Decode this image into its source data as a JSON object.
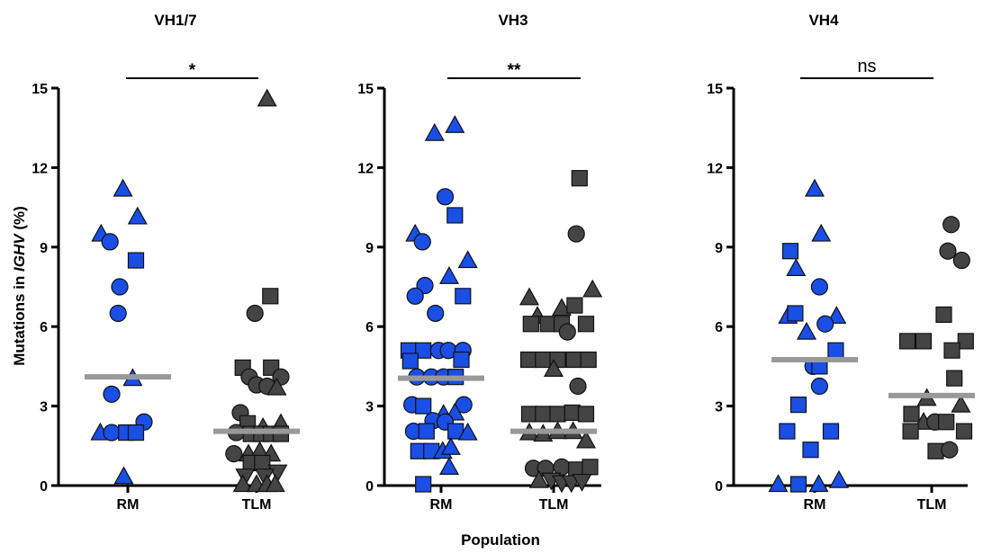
{
  "figure": {
    "ylabel_prefix": "Mutations in ",
    "ylabel_italic": "IGHV",
    "ylabel_suffix": " (%)",
    "xlabel": "Population"
  },
  "colors": {
    "rm_fill": "#1a4fe6",
    "tlm_fill": "#444444",
    "marker_stroke": "#111111",
    "median": "#999999"
  },
  "chart_data": [
    {
      "type": "scatter",
      "title": "VH1/7",
      "categories": [
        "RM",
        "TLM"
      ],
      "yticks": [
        0,
        3,
        6,
        9,
        12,
        15
      ],
      "ylim": [
        0,
        15
      ],
      "significance": "*",
      "medians": [
        4.1,
        2.05
      ],
      "series": [
        {
          "values": [
            {
              "x": -0.33,
              "y": 9.5,
              "m": "triangle"
            },
            {
              "x": -0.06,
              "y": 11.2,
              "m": "triangle"
            },
            {
              "x": 0.12,
              "y": 10.15,
              "m": "triangle"
            },
            {
              "x": -0.22,
              "y": 9.2,
              "m": "circle"
            },
            {
              "x": 0.1,
              "y": 8.5,
              "m": "square"
            },
            {
              "x": -0.1,
              "y": 7.5,
              "m": "circle"
            },
            {
              "x": -0.12,
              "y": 6.5,
              "m": "circle"
            },
            {
              "x": 0.06,
              "y": 4.05,
              "m": "triangle"
            },
            {
              "x": -0.2,
              "y": 3.45,
              "m": "circle"
            },
            {
              "x": 0.2,
              "y": 2.4,
              "m": "circle"
            },
            {
              "x": -0.34,
              "y": 2.0,
              "m": "triangle"
            },
            {
              "x": -0.2,
              "y": 2.0,
              "m": "circle"
            },
            {
              "x": -0.02,
              "y": 2.0,
              "m": "square"
            },
            {
              "x": 0.1,
              "y": 2.0,
              "m": "square"
            },
            {
              "x": -0.05,
              "y": 0.35,
              "m": "triangle"
            }
          ]
        },
        {
          "values": [
            {
              "x": 0.13,
              "y": 14.6,
              "m": "triangle"
            },
            {
              "x": 0.17,
              "y": 7.15,
              "m": "square"
            },
            {
              "x": -0.02,
              "y": 6.5,
              "m": "circle"
            },
            {
              "x": -0.17,
              "y": 4.45,
              "m": "square"
            },
            {
              "x": 0.18,
              "y": 4.45,
              "m": "square"
            },
            {
              "x": -0.09,
              "y": 4.1,
              "m": "circle"
            },
            {
              "x": 0.3,
              "y": 4.1,
              "m": "circle"
            },
            {
              "x": 0.0,
              "y": 3.8,
              "m": "circle"
            },
            {
              "x": 0.13,
              "y": 3.75,
              "m": "circle"
            },
            {
              "x": 0.25,
              "y": 3.7,
              "m": "triangle"
            },
            {
              "x": -0.2,
              "y": 2.75,
              "m": "circle"
            },
            {
              "x": -0.11,
              "y": 2.35,
              "m": "square"
            },
            {
              "x": 0.08,
              "y": 2.2,
              "m": "triangle"
            },
            {
              "x": 0.3,
              "y": 2.35,
              "m": "triangle"
            },
            {
              "x": -0.25,
              "y": 2.0,
              "m": "circle"
            },
            {
              "x": -0.07,
              "y": 1.95,
              "m": "square"
            },
            {
              "x": 0.06,
              "y": 1.95,
              "m": "square"
            },
            {
              "x": 0.18,
              "y": 1.95,
              "m": "square"
            },
            {
              "x": 0.3,
              "y": 1.95,
              "m": "square"
            },
            {
              "x": -0.28,
              "y": 1.2,
              "m": "circle"
            },
            {
              "x": -0.1,
              "y": 1.2,
              "m": "triangle"
            },
            {
              "x": 0.04,
              "y": 1.3,
              "m": "triangle"
            },
            {
              "x": 0.18,
              "y": 1.2,
              "m": "triangle"
            },
            {
              "x": -0.07,
              "y": 0.85,
              "m": "square"
            },
            {
              "x": 0.07,
              "y": 0.85,
              "m": "square"
            },
            {
              "x": 0.26,
              "y": 0.5,
              "m": "triangle_down"
            },
            {
              "x": -0.14,
              "y": 0.35,
              "m": "triangle_down"
            },
            {
              "x": 0.1,
              "y": 0.35,
              "m": "triangle_down"
            },
            {
              "x": -0.17,
              "y": 0.05,
              "m": "triangle"
            },
            {
              "x": 0.0,
              "y": 0.05,
              "m": "triangle"
            },
            {
              "x": 0.13,
              "y": 0.05,
              "m": "triangle"
            },
            {
              "x": 0.23,
              "y": 0.05,
              "m": "triangle"
            }
          ]
        }
      ]
    },
    {
      "type": "scatter",
      "title": "VH3",
      "categories": [
        "RM",
        "TLM"
      ],
      "yticks": [
        0,
        3,
        6,
        9,
        12,
        15
      ],
      "ylim": [
        0,
        15
      ],
      "significance": "**",
      "medians": [
        4.05,
        2.05
      ],
      "series": [
        {
          "values": [
            {
              "x": -0.08,
              "y": 13.3,
              "m": "triangle"
            },
            {
              "x": 0.17,
              "y": 13.6,
              "m": "triangle"
            },
            {
              "x": 0.05,
              "y": 10.9,
              "m": "circle"
            },
            {
              "x": 0.17,
              "y": 10.2,
              "m": "square"
            },
            {
              "x": -0.32,
              "y": 9.5,
              "m": "triangle"
            },
            {
              "x": -0.23,
              "y": 9.2,
              "m": "circle"
            },
            {
              "x": 0.33,
              "y": 8.5,
              "m": "triangle"
            },
            {
              "x": 0.1,
              "y": 7.9,
              "m": "triangle"
            },
            {
              "x": -0.2,
              "y": 7.55,
              "m": "circle"
            },
            {
              "x": -0.32,
              "y": 7.15,
              "m": "circle"
            },
            {
              "x": 0.27,
              "y": 7.15,
              "m": "square"
            },
            {
              "x": -0.07,
              "y": 6.5,
              "m": "circle"
            },
            {
              "x": -0.4,
              "y": 5.1,
              "m": "square"
            },
            {
              "x": -0.22,
              "y": 5.1,
              "m": "square"
            },
            {
              "x": -0.03,
              "y": 5.1,
              "m": "circle"
            },
            {
              "x": 0.09,
              "y": 5.1,
              "m": "circle"
            },
            {
              "x": 0.27,
              "y": 5.1,
              "m": "circle"
            },
            {
              "x": -0.38,
              "y": 4.7,
              "m": "square"
            },
            {
              "x": 0.25,
              "y": 4.75,
              "m": "square"
            },
            {
              "x": -0.3,
              "y": 4.1,
              "m": "circle"
            },
            {
              "x": -0.12,
              "y": 4.1,
              "m": "circle"
            },
            {
              "x": 0.03,
              "y": 4.1,
              "m": "circle"
            },
            {
              "x": 0.18,
              "y": 4.1,
              "m": "square"
            },
            {
              "x": -0.36,
              "y": 3.05,
              "m": "circle"
            },
            {
              "x": -0.22,
              "y": 3.0,
              "m": "square"
            },
            {
              "x": 0.28,
              "y": 3.05,
              "m": "circle"
            },
            {
              "x": 0.03,
              "y": 2.7,
              "m": "triangle"
            },
            {
              "x": 0.17,
              "y": 2.75,
              "m": "triangle"
            },
            {
              "x": -0.1,
              "y": 2.45,
              "m": "circle"
            },
            {
              "x": 0.05,
              "y": 2.4,
              "m": "circle"
            },
            {
              "x": -0.34,
              "y": 2.05,
              "m": "circle"
            },
            {
              "x": -0.18,
              "y": 2.05,
              "m": "square"
            },
            {
              "x": 0.18,
              "y": 2.05,
              "m": "square"
            },
            {
              "x": 0.33,
              "y": 2.0,
              "m": "triangle"
            },
            {
              "x": -0.28,
              "y": 1.3,
              "m": "square"
            },
            {
              "x": -0.12,
              "y": 1.3,
              "m": "square"
            },
            {
              "x": 0.02,
              "y": 1.3,
              "m": "triangle"
            },
            {
              "x": 0.12,
              "y": 1.45,
              "m": "triangle"
            },
            {
              "x": 0.1,
              "y": 0.7,
              "m": "triangle"
            },
            {
              "x": -0.22,
              "y": 0.05,
              "m": "square"
            }
          ]
        },
        {
          "values": [
            {
              "x": 0.32,
              "y": 11.6,
              "m": "square"
            },
            {
              "x": 0.28,
              "y": 9.5,
              "m": "circle"
            },
            {
              "x": 0.48,
              "y": 7.4,
              "m": "triangle"
            },
            {
              "x": -0.3,
              "y": 7.1,
              "m": "triangle"
            },
            {
              "x": 0.1,
              "y": 6.7,
              "m": "triangle"
            },
            {
              "x": 0.26,
              "y": 6.8,
              "m": "square"
            },
            {
              "x": -0.2,
              "y": 6.4,
              "m": "triangle"
            },
            {
              "x": -0.28,
              "y": 6.1,
              "m": "square"
            },
            {
              "x": -0.07,
              "y": 6.1,
              "m": "square"
            },
            {
              "x": 0.1,
              "y": 6.1,
              "m": "square"
            },
            {
              "x": 0.4,
              "y": 6.1,
              "m": "square"
            },
            {
              "x": 0.17,
              "y": 5.8,
              "m": "circle"
            },
            {
              "x": -0.31,
              "y": 4.75,
              "m": "square"
            },
            {
              "x": -0.13,
              "y": 4.75,
              "m": "square"
            },
            {
              "x": 0.05,
              "y": 4.75,
              "m": "square"
            },
            {
              "x": 0.25,
              "y": 4.75,
              "m": "square"
            },
            {
              "x": 0.43,
              "y": 4.75,
              "m": "square"
            },
            {
              "x": 0.0,
              "y": 4.4,
              "m": "triangle"
            },
            {
              "x": 0.3,
              "y": 3.75,
              "m": "circle"
            },
            {
              "x": -0.3,
              "y": 2.7,
              "m": "square"
            },
            {
              "x": -0.13,
              "y": 2.7,
              "m": "square"
            },
            {
              "x": 0.05,
              "y": 2.7,
              "m": "square"
            },
            {
              "x": 0.23,
              "y": 2.75,
              "m": "square"
            },
            {
              "x": 0.4,
              "y": 2.7,
              "m": "square"
            },
            {
              "x": -0.3,
              "y": 2.0,
              "m": "triangle"
            },
            {
              "x": -0.13,
              "y": 1.95,
              "m": "triangle"
            },
            {
              "x": 0.05,
              "y": 2.05,
              "m": "triangle"
            },
            {
              "x": 0.24,
              "y": 2.05,
              "m": "triangle"
            },
            {
              "x": 0.4,
              "y": 1.7,
              "m": "triangle"
            },
            {
              "x": -0.25,
              "y": 0.65,
              "m": "circle"
            },
            {
              "x": -0.1,
              "y": 0.65,
              "m": "circle"
            },
            {
              "x": 0.1,
              "y": 0.7,
              "m": "circle"
            },
            {
              "x": 0.28,
              "y": 0.6,
              "m": "square"
            },
            {
              "x": 0.45,
              "y": 0.7,
              "m": "square"
            },
            {
              "x": -0.18,
              "y": 0.2,
              "m": "triangle"
            },
            {
              "x": -0.03,
              "y": 0.2,
              "m": "triangle_down"
            },
            {
              "x": 0.1,
              "y": 0.1,
              "m": "triangle_down"
            },
            {
              "x": 0.22,
              "y": 0.1,
              "m": "triangle_down"
            },
            {
              "x": 0.35,
              "y": 0.15,
              "m": "triangle_down"
            }
          ]
        }
      ]
    },
    {
      "type": "scatter",
      "title": "VH4",
      "categories": [
        "RM",
        "TLM"
      ],
      "yticks": [
        0,
        3,
        6,
        9,
        12,
        15
      ],
      "ylim": [
        0,
        15
      ],
      "significance": "ns",
      "medians": [
        4.75,
        3.4
      ],
      "series": [
        {
          "values": [
            {
              "x": 0.0,
              "y": 11.2,
              "m": "triangle"
            },
            {
              "x": -0.3,
              "y": 8.85,
              "m": "square"
            },
            {
              "x": 0.08,
              "y": 9.5,
              "m": "triangle"
            },
            {
              "x": -0.23,
              "y": 8.2,
              "m": "triangle"
            },
            {
              "x": 0.06,
              "y": 7.5,
              "m": "circle"
            },
            {
              "x": -0.33,
              "y": 6.4,
              "m": "triangle"
            },
            {
              "x": -0.24,
              "y": 6.5,
              "m": "square"
            },
            {
              "x": 0.27,
              "y": 6.4,
              "m": "triangle"
            },
            {
              "x": 0.13,
              "y": 6.1,
              "m": "circle"
            },
            {
              "x": -0.1,
              "y": 5.8,
              "m": "triangle"
            },
            {
              "x": 0.26,
              "y": 5.1,
              "m": "square"
            },
            {
              "x": -0.02,
              "y": 4.5,
              "m": "circle"
            },
            {
              "x": 0.06,
              "y": 4.5,
              "m": "square"
            },
            {
              "x": 0.06,
              "y": 3.75,
              "m": "circle"
            },
            {
              "x": -0.2,
              "y": 3.05,
              "m": "square"
            },
            {
              "x": -0.34,
              "y": 2.05,
              "m": "square"
            },
            {
              "x": 0.2,
              "y": 2.05,
              "m": "square"
            },
            {
              "x": -0.05,
              "y": 1.35,
              "m": "square"
            },
            {
              "x": -0.45,
              "y": 0.05,
              "m": "triangle"
            },
            {
              "x": -0.2,
              "y": 0.05,
              "m": "square"
            },
            {
              "x": 0.05,
              "y": 0.05,
              "m": "triangle"
            },
            {
              "x": 0.3,
              "y": 0.2,
              "m": "triangle"
            }
          ]
        },
        {
          "values": [
            {
              "x": 0.24,
              "y": 9.85,
              "m": "circle"
            },
            {
              "x": 0.2,
              "y": 8.85,
              "m": "circle"
            },
            {
              "x": 0.37,
              "y": 8.5,
              "m": "circle"
            },
            {
              "x": 0.15,
              "y": 6.45,
              "m": "square"
            },
            {
              "x": -0.3,
              "y": 5.45,
              "m": "square"
            },
            {
              "x": -0.1,
              "y": 5.45,
              "m": "square"
            },
            {
              "x": 0.42,
              "y": 5.45,
              "m": "square"
            },
            {
              "x": 0.25,
              "y": 5.1,
              "m": "square"
            },
            {
              "x": 0.28,
              "y": 4.05,
              "m": "square"
            },
            {
              "x": -0.06,
              "y": 3.3,
              "m": "triangle"
            },
            {
              "x": -0.25,
              "y": 2.7,
              "m": "square"
            },
            {
              "x": -0.1,
              "y": 2.4,
              "m": "triangle"
            },
            {
              "x": 0.04,
              "y": 2.4,
              "m": "circle"
            },
            {
              "x": 0.18,
              "y": 2.4,
              "m": "square"
            },
            {
              "x": 0.36,
              "y": 3.05,
              "m": "triangle"
            },
            {
              "x": -0.26,
              "y": 2.05,
              "m": "square"
            },
            {
              "x": 0.4,
              "y": 2.05,
              "m": "square"
            },
            {
              "x": 0.05,
              "y": 1.3,
              "m": "square"
            },
            {
              "x": 0.22,
              "y": 1.35,
              "m": "circle"
            }
          ]
        }
      ]
    }
  ]
}
